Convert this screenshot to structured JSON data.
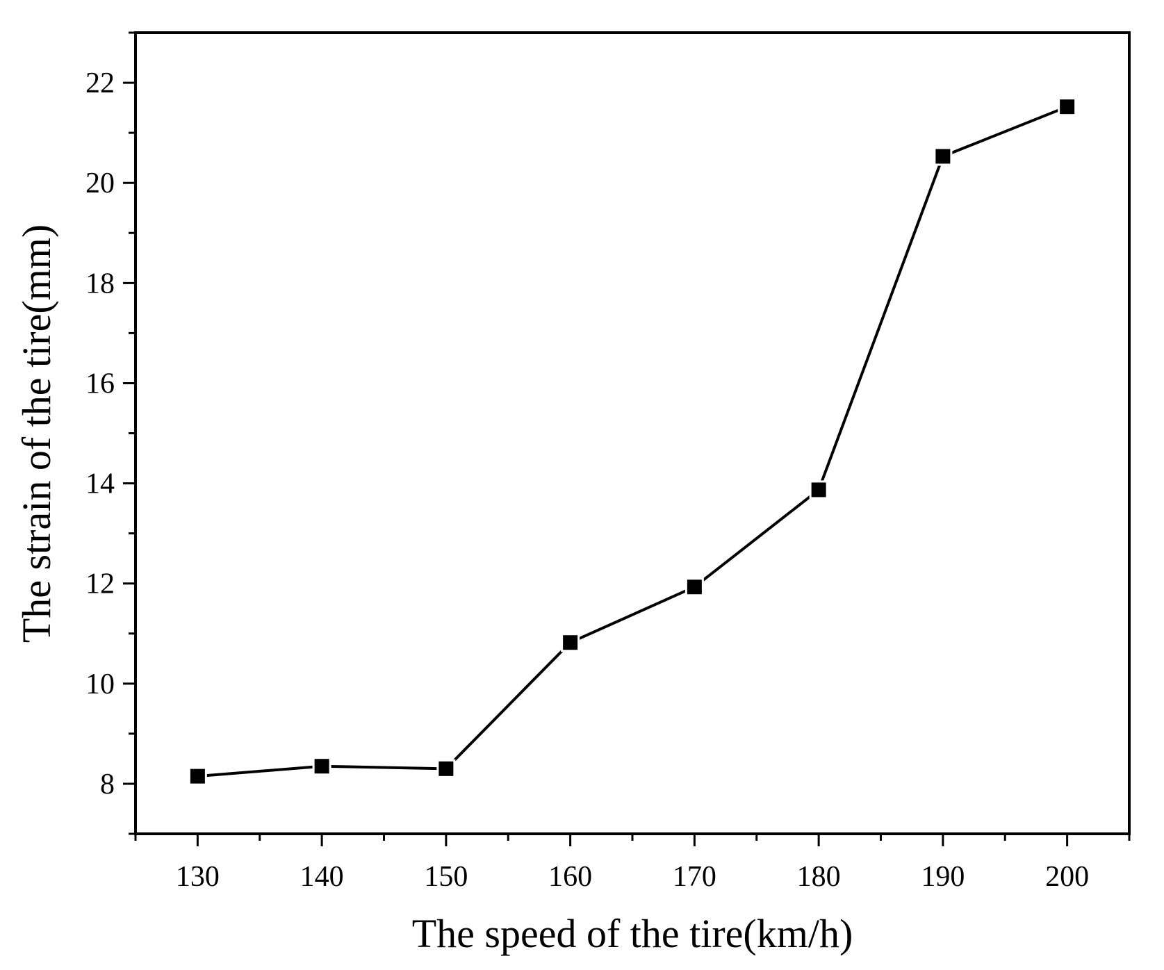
{
  "chart_data": {
    "type": "line",
    "title": "",
    "xlabel": "The speed of the tire(km/h)",
    "ylabel": "The strain of the tire(mm)",
    "xlim": [
      125,
      205
    ],
    "ylim": [
      7,
      23
    ],
    "x_ticks": [
      130,
      140,
      150,
      160,
      170,
      180,
      190,
      200
    ],
    "x_tick_labels": [
      "130",
      "140",
      "150",
      "160",
      "170",
      "180",
      "190",
      "200"
    ],
    "y_ticks": [
      8,
      10,
      12,
      14,
      16,
      18,
      20,
      22
    ],
    "y_tick_labels": [
      "8",
      "10",
      "12",
      "14",
      "16",
      "18",
      "20",
      "22"
    ],
    "grid": false,
    "legend": "none",
    "series": [
      {
        "name": "strain",
        "marker": "square",
        "color": "#000000",
        "x": [
          130,
          140,
          150,
          160,
          170,
          180,
          190,
          200
        ],
        "y": [
          8.15,
          8.35,
          8.3,
          10.82,
          11.93,
          13.87,
          20.53,
          21.52
        ]
      }
    ]
  }
}
